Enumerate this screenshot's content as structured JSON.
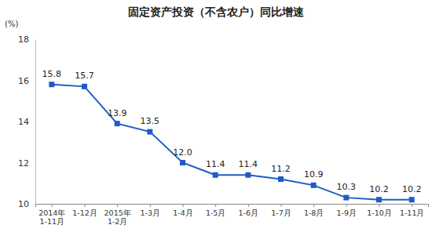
{
  "chart_data": {
    "type": "line",
    "title": "固定资产投资（不含农户）同比增速",
    "y_label": "(%)",
    "categories": [
      "2014年\n1-11月",
      "1-12月",
      "2015年\n1-2月",
      "1-3月",
      "1-4月",
      "1-5月",
      "1-6月",
      "1-7月",
      "1-8月",
      "1-9月",
      "1-10月",
      "1-11月"
    ],
    "values": [
      15.8,
      15.7,
      13.9,
      13.5,
      12.0,
      11.4,
      11.4,
      11.2,
      10.9,
      10.3,
      10.2,
      10.2
    ],
    "value_labels": [
      "15.8",
      "15.7",
      "13.9",
      "13.5",
      "12.0",
      "11.4",
      "11.4",
      "11.2",
      "10.9",
      "10.3",
      "10.2",
      "10.2"
    ],
    "color": "#1e5bc6",
    "marker": "square",
    "ylim": [
      10,
      18
    ],
    "yticks": [
      10,
      12,
      14,
      16,
      18
    ],
    "grid": false,
    "data_labels": true
  }
}
